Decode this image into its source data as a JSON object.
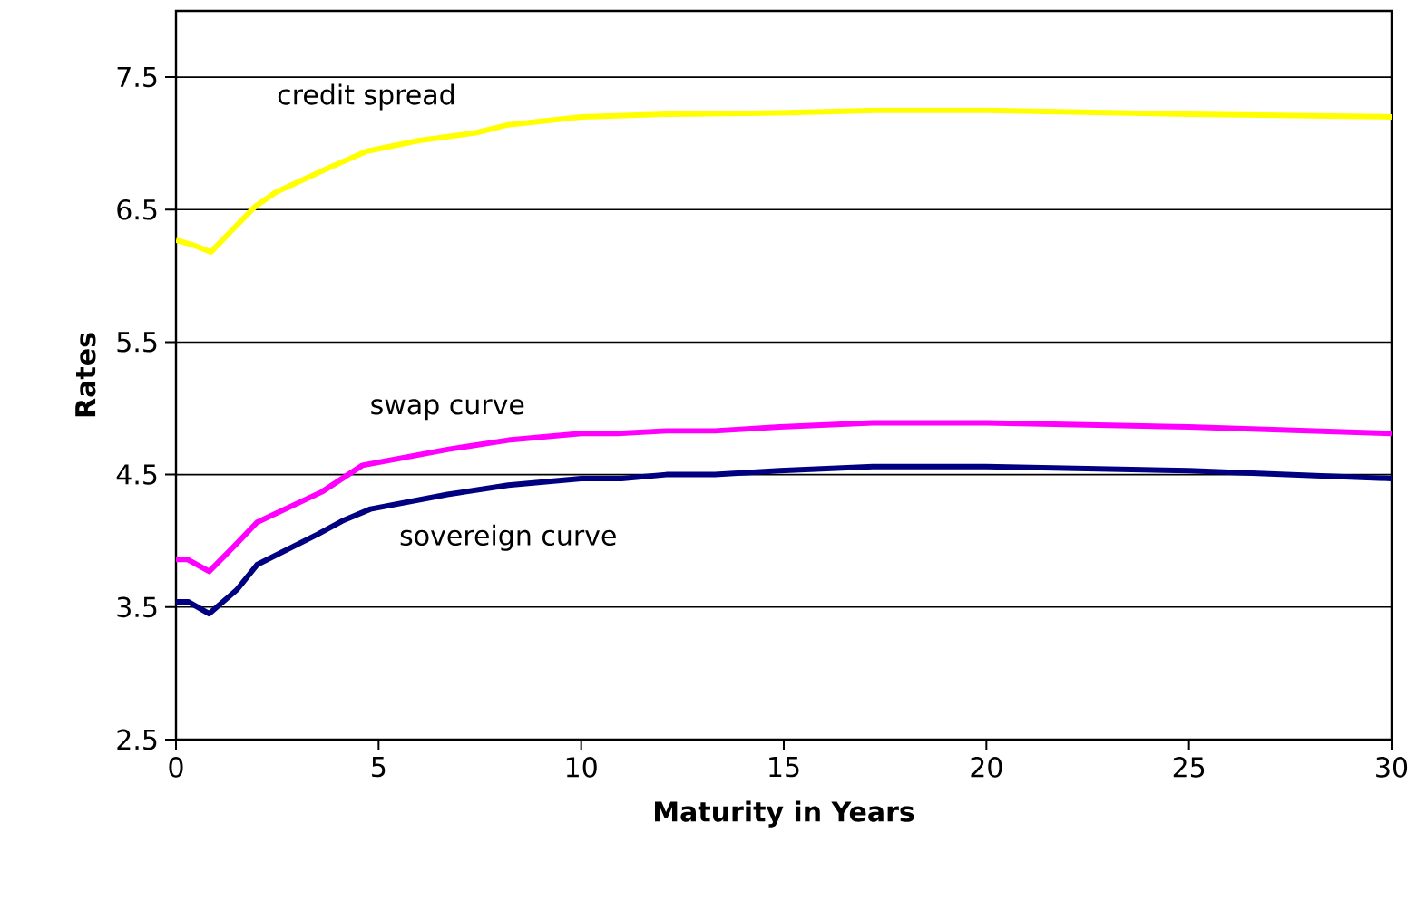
{
  "chart_data": {
    "type": "line",
    "xlabel": "Maturity in Years",
    "ylabel": "Rates",
    "xlim": [
      0,
      30
    ],
    "xticks": [
      0,
      5,
      10,
      15,
      20,
      25,
      30
    ],
    "ylim": [
      2.5,
      8
    ],
    "yticks": [
      2.5,
      3.5,
      4.5,
      5.5,
      6.5,
      7.5
    ],
    "grid": "y",
    "legend": false,
    "marker": "none",
    "line_style": "solid",
    "series": [
      {
        "name": "credit spread",
        "color": "#ffff00",
        "x": [
          0,
          0.45,
          0.86,
          1.4,
          1.94,
          2.46,
          3.73,
          4.7,
          5.97,
          7.4,
          8.2,
          10,
          12.1,
          14.9,
          17.3,
          20,
          25,
          30
        ],
        "values": [
          6.27,
          6.23,
          6.18,
          6.35,
          6.52,
          6.63,
          6.81,
          6.94,
          7.02,
          7.08,
          7.14,
          7.2,
          7.22,
          7.23,
          7.25,
          7.25,
          7.22,
          7.2
        ]
      },
      {
        "name": "swap curve",
        "color": "#ff00ff",
        "x": [
          0,
          0.28,
          0.82,
          1.5,
          2.0,
          3.6,
          4.6,
          6.7,
          8.2,
          10,
          10.9,
          12.1,
          13.3,
          14.9,
          17.2,
          20,
          25,
          30
        ],
        "values": [
          3.86,
          3.86,
          3.77,
          3.98,
          4.14,
          4.37,
          4.57,
          4.69,
          4.76,
          4.81,
          4.81,
          4.83,
          4.83,
          4.86,
          4.89,
          4.89,
          4.86,
          4.81
        ]
      },
      {
        "name": "sovereign curve",
        "color": "#000080",
        "x": [
          0,
          0.3,
          0.82,
          1.5,
          2.0,
          3.5,
          4.1,
          4.8,
          6.7,
          8.2,
          10,
          11,
          12.1,
          13.3,
          14.9,
          17.2,
          20,
          25,
          30
        ],
        "values": [
          3.54,
          3.54,
          3.45,
          3.63,
          3.82,
          4.05,
          4.15,
          4.24,
          4.35,
          4.42,
          4.47,
          4.47,
          4.5,
          4.5,
          4.53,
          4.56,
          4.56,
          4.53,
          4.47
        ]
      }
    ]
  }
}
